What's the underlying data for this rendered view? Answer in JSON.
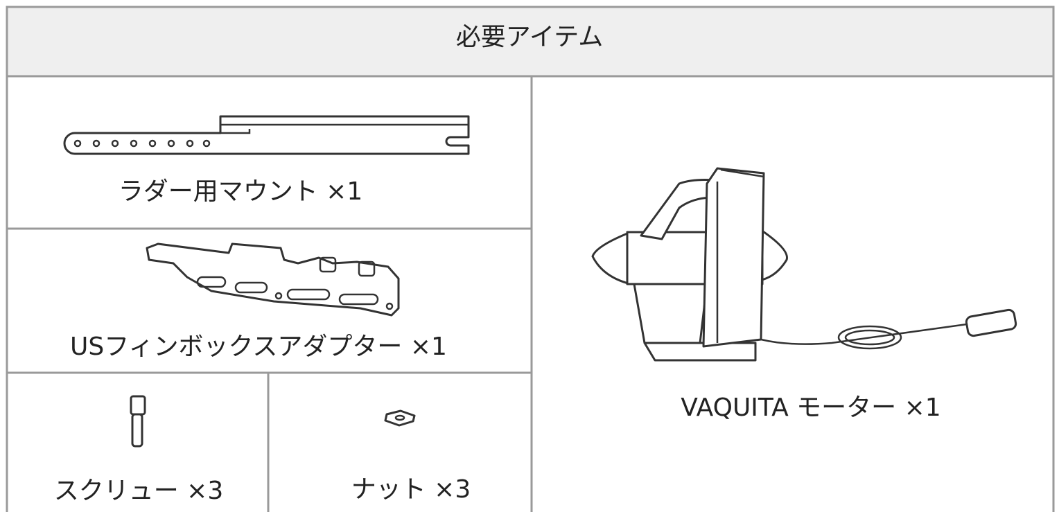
{
  "header": {
    "title": "必要アイテム"
  },
  "items": [
    {
      "label": "ラダー用マウント ×1"
    },
    {
      "label": "USフィンボックスアダプター ×1"
    },
    {
      "label": "スクリュー ×3"
    },
    {
      "label": "ナット ×3"
    },
    {
      "label": "VAQUITA モーター ×1"
    }
  ]
}
